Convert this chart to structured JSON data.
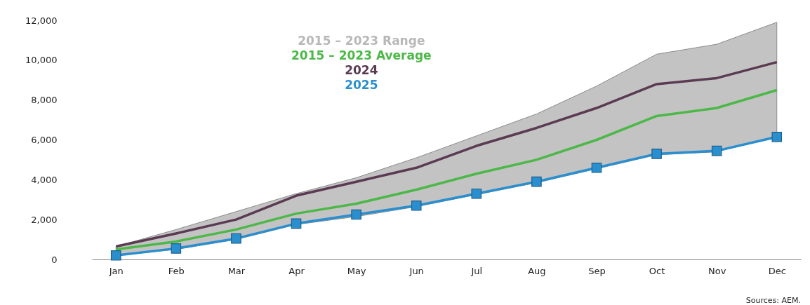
{
  "chart_data": {
    "type": "line",
    "categories": [
      "Jan",
      "Feb",
      "Mar",
      "Apr",
      "May",
      "Jun",
      "Jul",
      "Aug",
      "Sep",
      "Oct",
      "Nov",
      "Dec"
    ],
    "ylim": [
      0,
      12000
    ],
    "yticks": [
      0,
      {
        "value": 2000,
        "label": "2,000"
      },
      {
        "value": 4000,
        "label": "4,000"
      },
      {
        "value": 6000,
        "label": "6,000"
      },
      {
        "value": 8000,
        "label": "8,000"
      },
      {
        "value": 10000,
        "label": "10,000"
      },
      {
        "value": 12000,
        "label": "12,000"
      }
    ],
    "legend": "top",
    "series": [
      {
        "name": "2015 – 2023 Average",
        "color": "#4cb848",
        "values": [
          500,
          900,
          1500,
          2300,
          2800,
          3500,
          4300,
          5000,
          6000,
          7200,
          7600,
          8500
        ],
        "lower": [
          200,
          500,
          1000,
          1750,
          2150,
          2650,
          3250,
          3850,
          4550,
          5250,
          5400,
          6200
        ],
        "upper": [
          650,
          1500,
          2400,
          3300,
          4100,
          5100,
          6200,
          7300,
          8700,
          10300,
          10800,
          11900
        ]
      },
      {
        "name": "2024",
        "color": "#5a3b52",
        "values": [
          650,
          1300,
          2000,
          3200,
          3900,
          4600,
          5700,
          6600,
          7600,
          8800,
          9100,
          9900
        ]
      },
      {
        "name": "2025",
        "color": "#2a8fcf",
        "marker": "square",
        "values": [
          200,
          550,
          1050,
          1800,
          2250,
          2700,
          3300,
          3900,
          4600,
          5300,
          5450,
          6150
        ]
      }
    ],
    "annotations": [
      "2015 – 2023 Range",
      "Sources: AEM."
    ]
  }
}
